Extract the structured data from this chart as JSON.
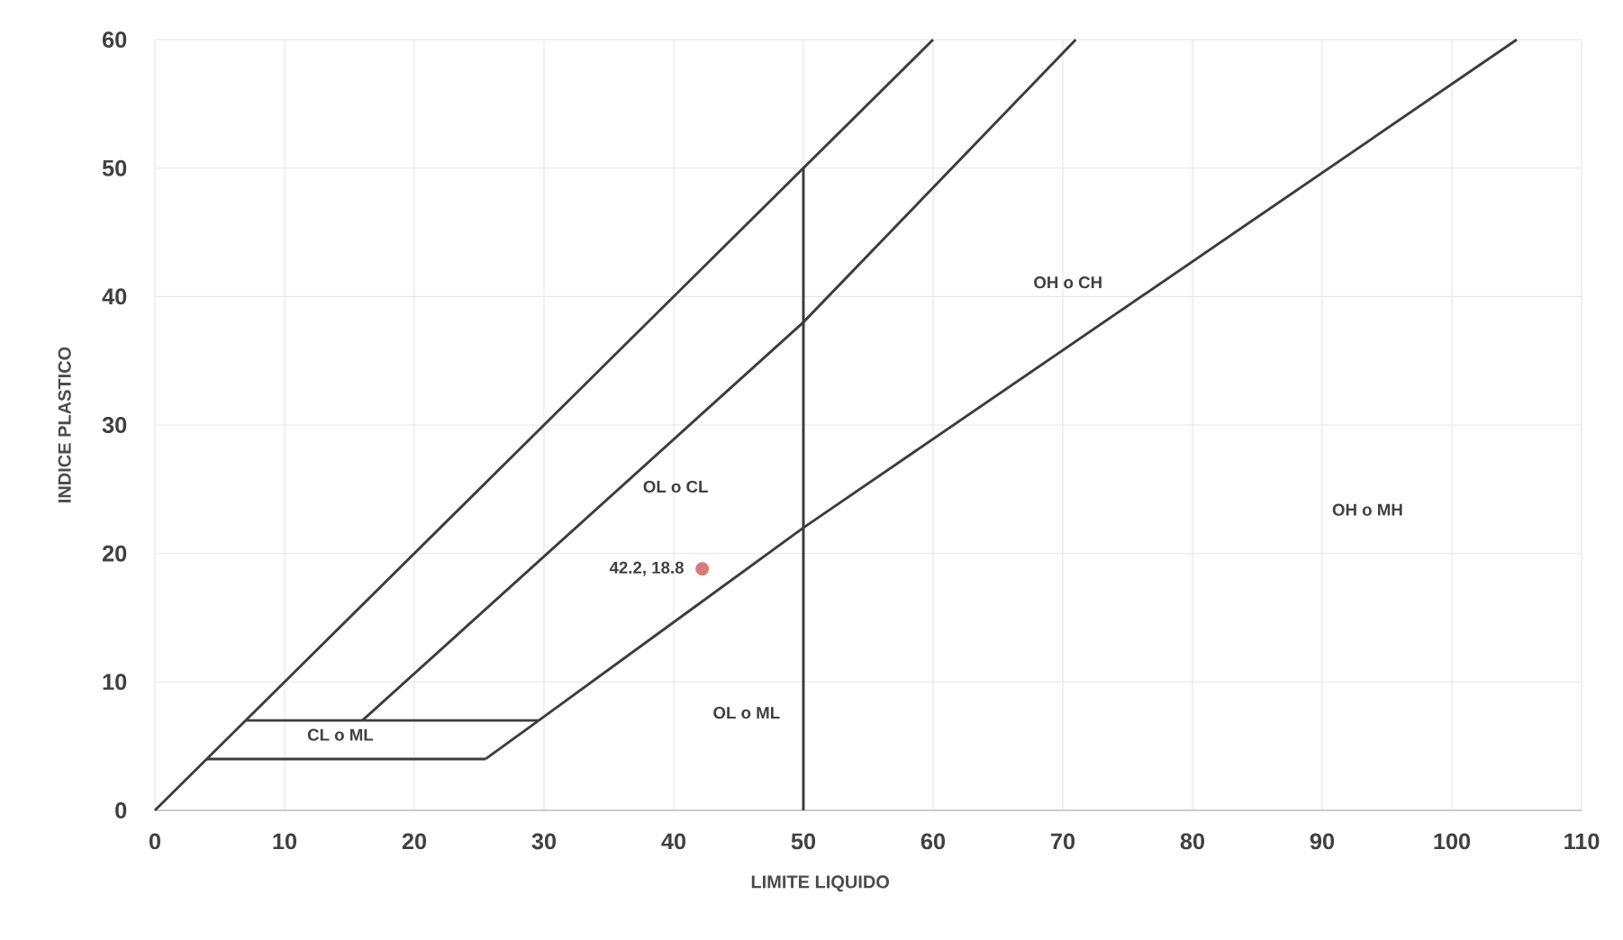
{
  "chart_data": {
    "type": "scatter",
    "xlabel": "LIMITE LIQUIDO",
    "ylabel": "INDICE PLASTICO",
    "xlim": [
      0,
      110
    ],
    "ylim": [
      0,
      60
    ],
    "xticks": [
      0,
      10,
      20,
      30,
      40,
      50,
      60,
      70,
      80,
      90,
      100,
      110
    ],
    "yticks": [
      0,
      10,
      20,
      30,
      40,
      50,
      60
    ],
    "grid": true,
    "series": [
      {
        "type": "line",
        "color": "#3c3c3c",
        "x": [
          0,
          60
        ],
        "values": [
          0,
          60
        ]
      },
      {
        "type": "line",
        "color": "#3c3c3c",
        "x": [
          16,
          50,
          71
        ],
        "values": [
          7,
          38,
          60
        ]
      },
      {
        "type": "line",
        "color": "#3c3c3c",
        "x": [
          25.5,
          29.6,
          50,
          105
        ],
        "values": [
          4,
          7,
          22,
          60
        ]
      },
      {
        "type": "line",
        "color": "#3c3c3c",
        "x": [
          4,
          25.5
        ],
        "values": [
          4,
          4
        ]
      },
      {
        "type": "line",
        "color": "#3c3c3c",
        "x": [
          7,
          29.6
        ],
        "values": [
          7,
          7
        ]
      },
      {
        "type": "line",
        "color": "#3c3c3c",
        "x": [
          50,
          50
        ],
        "values": [
          0,
          50
        ]
      },
      {
        "color": "#d87a7a",
        "x": [
          42.2
        ],
        "values": [
          18.8
        ]
      }
    ],
    "annotations": [
      {
        "text": "42.2, 18.8",
        "x": 42.2,
        "y": 18.8
      },
      "OH o CH",
      "OL o CL",
      "OH o MH",
      {
        "text": "OL o ML",
        "x": 49.6,
        "y": 7.6
      },
      "CL o ML"
    ]
  }
}
